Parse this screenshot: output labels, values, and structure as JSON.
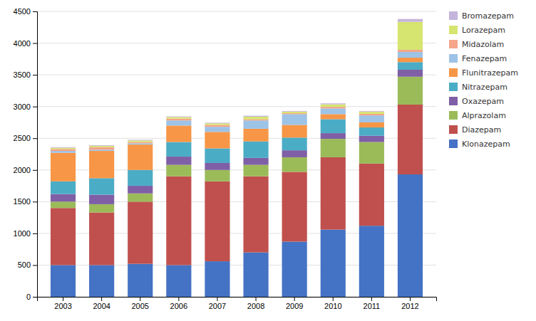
{
  "chart_data": {
    "type": "bar",
    "stacked": true,
    "categories": [
      "2003",
      "2004",
      "2005",
      "2006",
      "2007",
      "2008",
      "2009",
      "2010",
      "2011",
      "2012"
    ],
    "series": [
      {
        "name": "Klonazepam",
        "color": "#4472C4",
        "values": [
          500,
          500,
          520,
          500,
          560,
          700,
          870,
          1060,
          1120,
          1930
        ]
      },
      {
        "name": "Diazepam",
        "color": "#C0504D",
        "values": [
          900,
          830,
          980,
          1400,
          1260,
          1200,
          1100,
          1140,
          980,
          1100
        ]
      },
      {
        "name": "Alprazolam",
        "color": "#9BBB59",
        "values": [
          100,
          130,
          130,
          180,
          180,
          180,
          230,
          290,
          340,
          440
        ]
      },
      {
        "name": "Oxazepam",
        "color": "#7F5FA6",
        "values": [
          120,
          150,
          120,
          130,
          110,
          110,
          110,
          90,
          100,
          110
        ]
      },
      {
        "name": "Nitrazepam",
        "color": "#4BACC6",
        "values": [
          200,
          260,
          250,
          230,
          230,
          260,
          200,
          220,
          130,
          120
        ]
      },
      {
        "name": "Flunitrazepam",
        "color": "#F79646",
        "values": [
          450,
          430,
          400,
          260,
          260,
          200,
          200,
          80,
          80,
          70
        ]
      },
      {
        "name": "Fenazepam",
        "color": "#9DC3E6",
        "values": [
          30,
          20,
          20,
          80,
          80,
          130,
          170,
          90,
          110,
          90
        ]
      },
      {
        "name": "Midazolam",
        "color": "#F4A58A",
        "values": [
          30,
          40,
          20,
          30,
          30,
          20,
          15,
          25,
          25,
          35
        ]
      },
      {
        "name": "Lorazepam",
        "color": "#D6E470",
        "values": [
          20,
          20,
          25,
          25,
          25,
          40,
          25,
          40,
          35,
          440
        ]
      },
      {
        "name": "Bromazepam",
        "color": "#C5B4DC",
        "values": [
          10,
          10,
          10,
          10,
          10,
          15,
          10,
          15,
          10,
          45
        ]
      }
    ],
    "ylim": [
      0,
      4500
    ],
    "yticks": [
      0,
      500,
      1000,
      1500,
      2000,
      2500,
      3000,
      3500,
      4000,
      4500
    ],
    "grid": true,
    "legend": "right"
  }
}
